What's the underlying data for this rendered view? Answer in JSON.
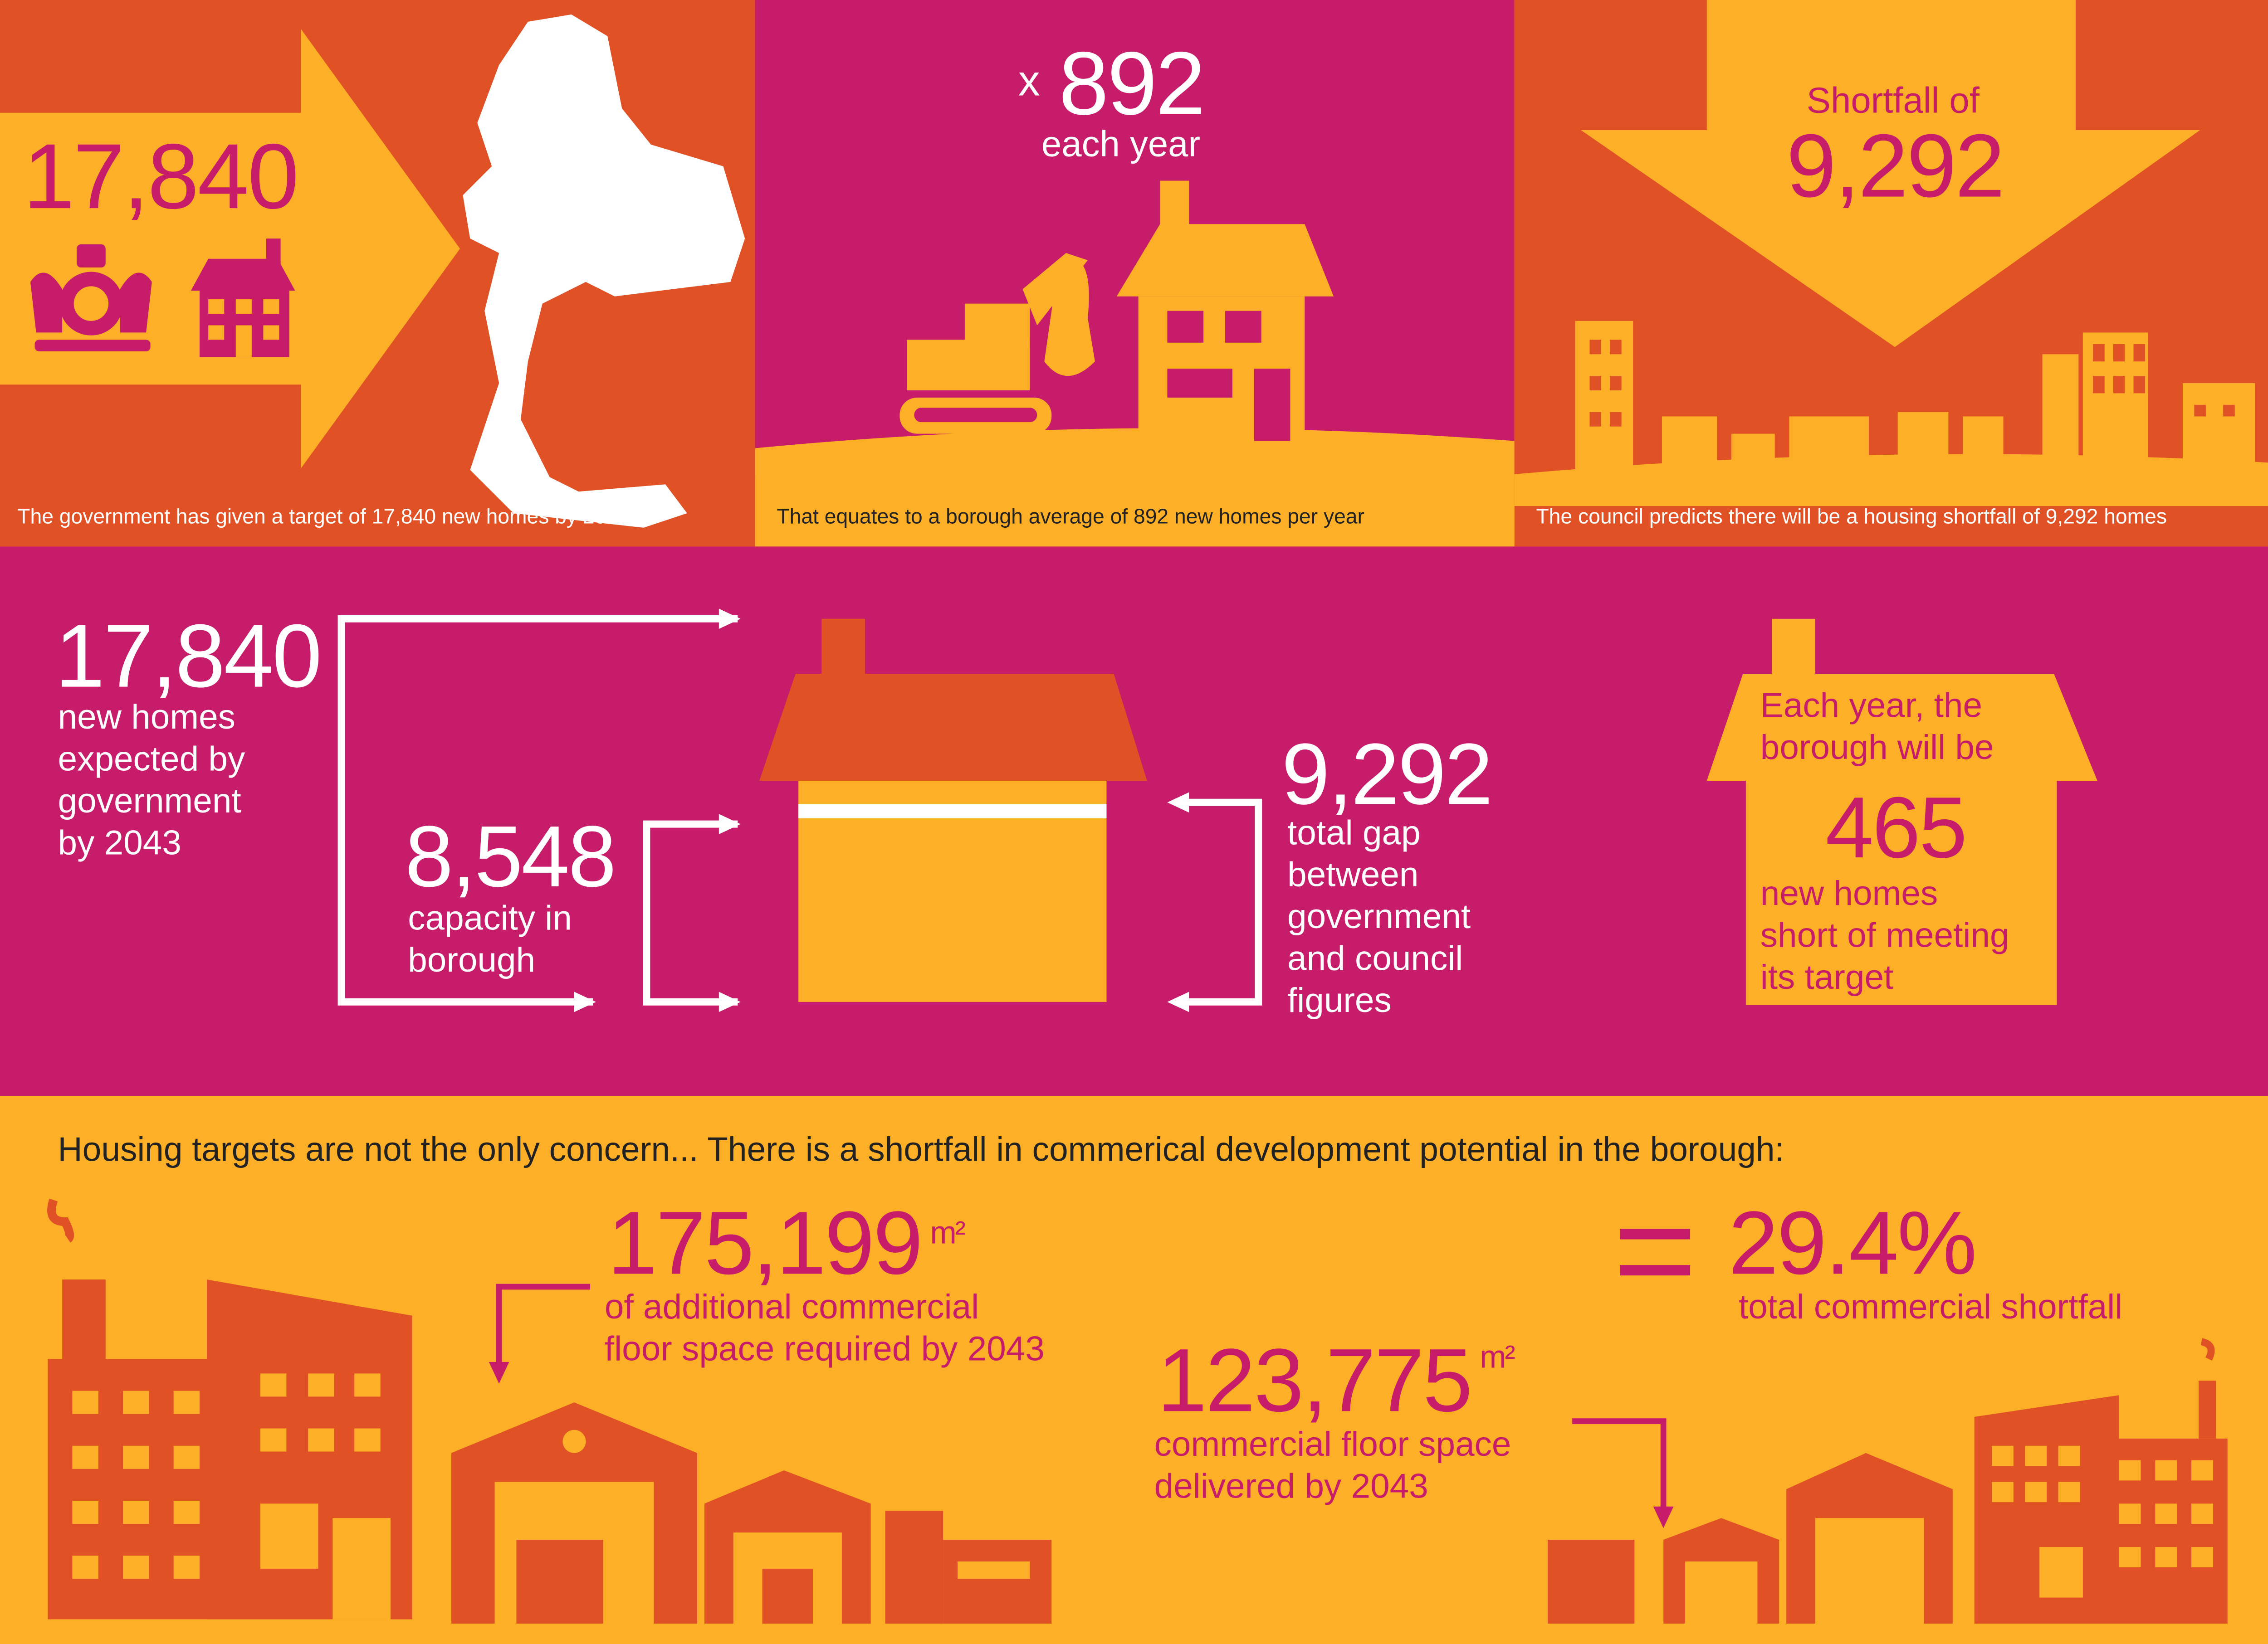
{
  "colors": {
    "orange": "#E05225",
    "yellow": "#FDB027",
    "magenta": "#C71C6A",
    "white": "#FFFFFF"
  },
  "panel1": {
    "number": "17,840",
    "caption": "The government has given a target of 17,840 new homes by 2043",
    "icons": [
      "right-arrow-icon",
      "royal-coat-of-arms-icon",
      "house-icon",
      "borough-map-icon"
    ]
  },
  "panel2": {
    "prefix": "x",
    "number": "892",
    "subtitle": "each year",
    "caption": "That equates to a borough average of 892 new homes per year",
    "icons": [
      "excavator-icon",
      "house-under-construction-icon"
    ]
  },
  "panel3": {
    "label": "Shortfall of",
    "number": "9,292",
    "caption": "The council predicts there will be a housing shortfall of 9,292 homes",
    "icons": [
      "down-arrow-icon",
      "skyline-icon"
    ]
  },
  "middle": {
    "gov": {
      "number": "17,840",
      "lines": [
        "new homes",
        "expected by",
        "government",
        "by 2043"
      ]
    },
    "capacity": {
      "number": "8,548",
      "lines": [
        "capacity in",
        "borough"
      ]
    },
    "gap": {
      "number": "9,292",
      "lines": [
        "total gap",
        "between",
        "government",
        "and council",
        "figures"
      ]
    },
    "yearly": {
      "lines_top": [
        "Each year, the",
        "borough will be"
      ],
      "number": "465",
      "lines_bottom": [
        "new homes",
        "short of meeting",
        "its target"
      ]
    }
  },
  "bottom": {
    "heading": "Housing targets are not the only concern... There is a shortfall in commerical development potential in the borough:",
    "required": {
      "number": "175,199",
      "unit": "m²",
      "lines": [
        "of additional commercial",
        "floor space required by 2043"
      ]
    },
    "delivered": {
      "number": "123,775",
      "unit": "m²",
      "lines": [
        "commercial floor space",
        "delivered by 2043"
      ]
    },
    "shortfall": {
      "symbol": "=",
      "number": "29.4%",
      "label": "total commercial shortfall"
    },
    "icons": [
      "factory-icon",
      "warehouse-icon"
    ]
  }
}
